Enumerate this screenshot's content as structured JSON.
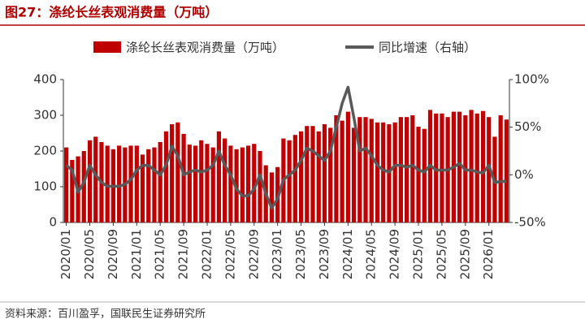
{
  "chart_data": {
    "type": "bar_line",
    "title": "图27：涤纶长丝表观消费量（万吨）",
    "source": "资料来源：百川盈孚，国联民生证券研究所",
    "categories": [
      "2020/01",
      null,
      null,
      null,
      "2020/05",
      null,
      null,
      null,
      "2020/09",
      null,
      null,
      null,
      "2021/01",
      null,
      null,
      null,
      "2021/05",
      null,
      null,
      null,
      "2021/09",
      null,
      null,
      null,
      "2022/01",
      null,
      null,
      null,
      "2022/05",
      null,
      null,
      null,
      "2022/09",
      null,
      null,
      null,
      "2023/01",
      null,
      null,
      null,
      "2023/05",
      null,
      null,
      null,
      "2023/09",
      null,
      null,
      null,
      "2024/01",
      null,
      null,
      null,
      "2024/05",
      null,
      null,
      null,
      "2024/09",
      null,
      null,
      null,
      "2025/01",
      null,
      null,
      null,
      "2025/05",
      null,
      null,
      null,
      "2025/09",
      null,
      null,
      null,
      "2026/01",
      null,
      null,
      null
    ],
    "series": [
      {
        "name": "涤纶长丝表观消费量（万吨）",
        "color": "#c00000",
        "type": "bar",
        "values": [
          210,
          175,
          185,
          200,
          230,
          240,
          225,
          215,
          205,
          215,
          210,
          215,
          215,
          190,
          205,
          210,
          225,
          255,
          275,
          280,
          248,
          218,
          215,
          230,
          220,
          210,
          255,
          235,
          215,
          205,
          210,
          215,
          220,
          200,
          160,
          140,
          155,
          235,
          230,
          245,
          255,
          270,
          270,
          255,
          275,
          265,
          300,
          285,
          310,
          265,
          295,
          295,
          290,
          280,
          280,
          275,
          280,
          295,
          295,
          300,
          268,
          262,
          315,
          305,
          305,
          295,
          310,
          310,
          300,
          315,
          305,
          312,
          295,
          240,
          300,
          288
        ]
      },
      {
        "name": "同比增速（右轴）",
        "color": "#595959",
        "type": "line",
        "axis": "y2",
        "values": [
          10,
          5,
          -18,
          -8,
          10,
          0,
          -8,
          -12,
          -12,
          -12,
          -10,
          -5,
          5,
          10,
          10,
          5,
          0,
          10,
          30,
          20,
          0,
          3,
          5,
          3,
          5,
          10,
          25,
          10,
          0,
          -15,
          -22,
          -22,
          -15,
          0,
          -20,
          -35,
          -25,
          -5,
          0,
          5,
          15,
          28,
          25,
          20,
          15,
          25,
          50,
          75,
          92,
          60,
          25,
          28,
          20,
          10,
          5,
          3,
          10,
          10,
          8,
          10,
          5,
          3,
          10,
          5,
          5,
          5,
          8,
          12,
          5,
          5,
          3,
          2,
          10,
          -8,
          -7,
          -7
        ]
      }
    ],
    "ylim": [
      0,
      400
    ],
    "yticks": [
      0,
      100,
      200,
      300,
      400
    ],
    "y2lim": [
      -50,
      100
    ],
    "y2ticks": [
      {
        "value": -50,
        "label": "-50%"
      },
      {
        "value": 0,
        "label": "0%"
      },
      {
        "value": 50,
        "label": "50%"
      },
      {
        "value": 100,
        "label": "100%"
      }
    ]
  }
}
